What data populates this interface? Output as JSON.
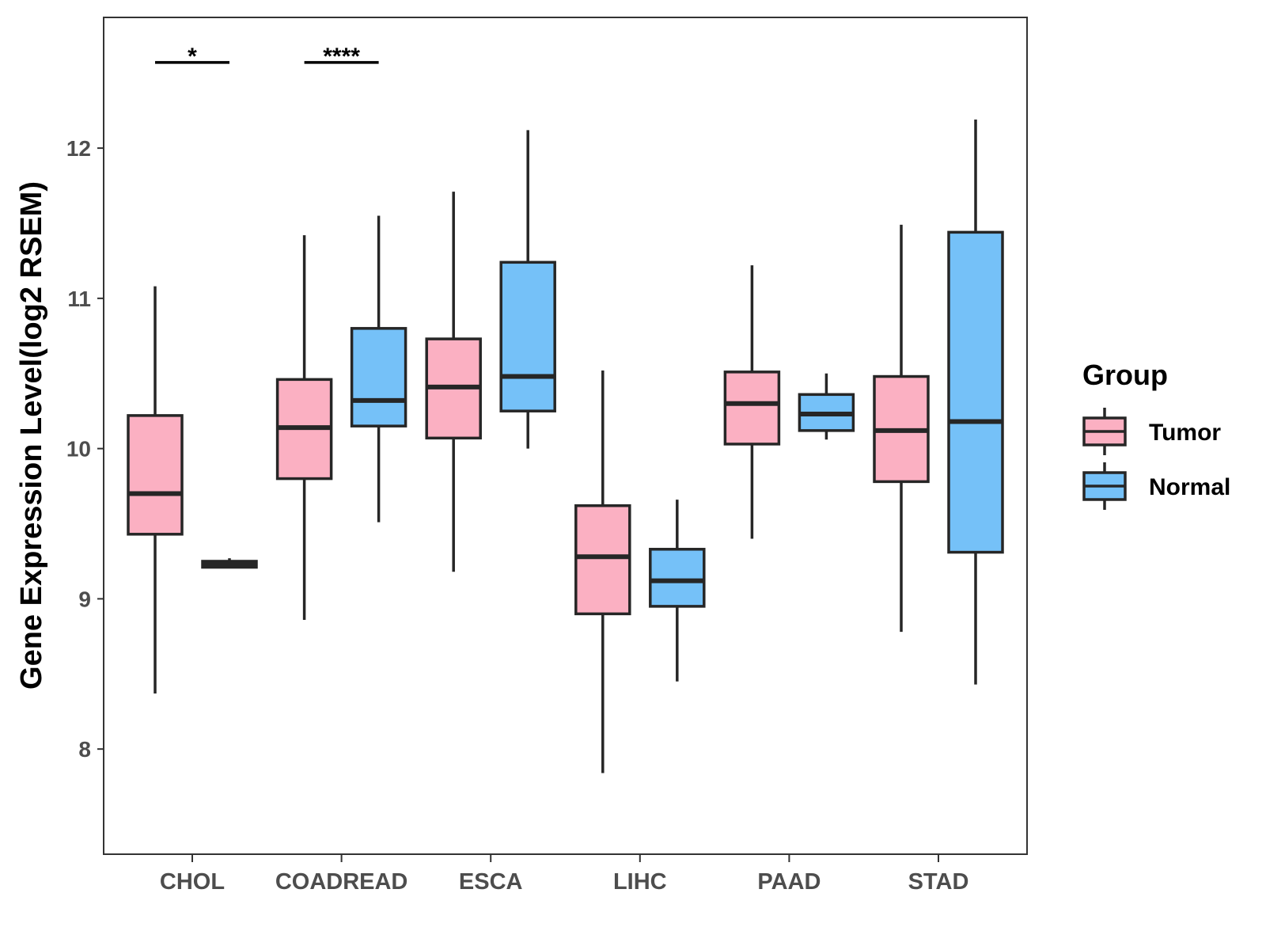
{
  "chart_data": {
    "type": "boxplot",
    "title": "",
    "xlabel": "",
    "ylabel": "Gene Expression Level(log2 RSEM)",
    "ylim": [
      7.3,
      12.87
    ],
    "yticks": [
      8,
      9,
      10,
      11,
      12
    ],
    "ytick_labels": [
      "8",
      "9",
      "10",
      "11",
      "12"
    ],
    "grid": false,
    "categories": [
      "CHOL",
      "COADREAD",
      "ESCA",
      "LIHC",
      "PAAD",
      "STAD"
    ],
    "legend": {
      "title": "Group",
      "position": "right",
      "entries": [
        {
          "name": "Tumor",
          "color": "#FBB0C2"
        },
        {
          "name": "Normal",
          "color": "#75C1F8"
        }
      ]
    },
    "series": [
      {
        "name": "Tumor",
        "color": "#FBB0C2",
        "boxes": [
          {
            "category": "CHOL",
            "min": 8.37,
            "q1": 9.43,
            "median": 9.7,
            "q3": 10.22,
            "max": 11.08
          },
          {
            "category": "COADREAD",
            "min": 8.86,
            "q1": 9.8,
            "median": 10.14,
            "q3": 10.46,
            "max": 11.42
          },
          {
            "category": "ESCA",
            "min": 9.18,
            "q1": 10.07,
            "median": 10.41,
            "q3": 10.73,
            "max": 11.71
          },
          {
            "category": "LIHC",
            "min": 7.84,
            "q1": 8.9,
            "median": 9.28,
            "q3": 9.62,
            "max": 10.52
          },
          {
            "category": "PAAD",
            "min": 9.4,
            "q1": 10.03,
            "median": 10.3,
            "q3": 10.51,
            "max": 11.22
          },
          {
            "category": "STAD",
            "min": 8.78,
            "q1": 9.78,
            "median": 10.12,
            "q3": 10.48,
            "max": 11.49
          }
        ]
      },
      {
        "name": "Normal",
        "color": "#75C1F8",
        "boxes": [
          {
            "category": "CHOL",
            "min": 9.21,
            "q1": 9.21,
            "median": 9.23,
            "q3": 9.25,
            "max": 9.27
          },
          {
            "category": "COADREAD",
            "min": 9.51,
            "q1": 10.15,
            "median": 10.32,
            "q3": 10.8,
            "max": 11.55
          },
          {
            "category": "ESCA",
            "min": 10.0,
            "q1": 10.25,
            "median": 10.48,
            "q3": 11.24,
            "max": 12.12
          },
          {
            "category": "LIHC",
            "min": 8.45,
            "q1": 8.95,
            "median": 9.12,
            "q3": 9.33,
            "max": 9.66
          },
          {
            "category": "PAAD",
            "min": 10.06,
            "q1": 10.12,
            "median": 10.23,
            "q3": 10.36,
            "max": 10.5
          },
          {
            "category": "STAD",
            "min": 8.43,
            "q1": 9.31,
            "median": 10.18,
            "q3": 11.44,
            "max": 12.19
          }
        ]
      }
    ],
    "annotations": [
      {
        "category": "CHOL",
        "label": "*",
        "y": 12.57
      },
      {
        "category": "COADREAD",
        "label": "****",
        "y": 12.57
      }
    ]
  }
}
